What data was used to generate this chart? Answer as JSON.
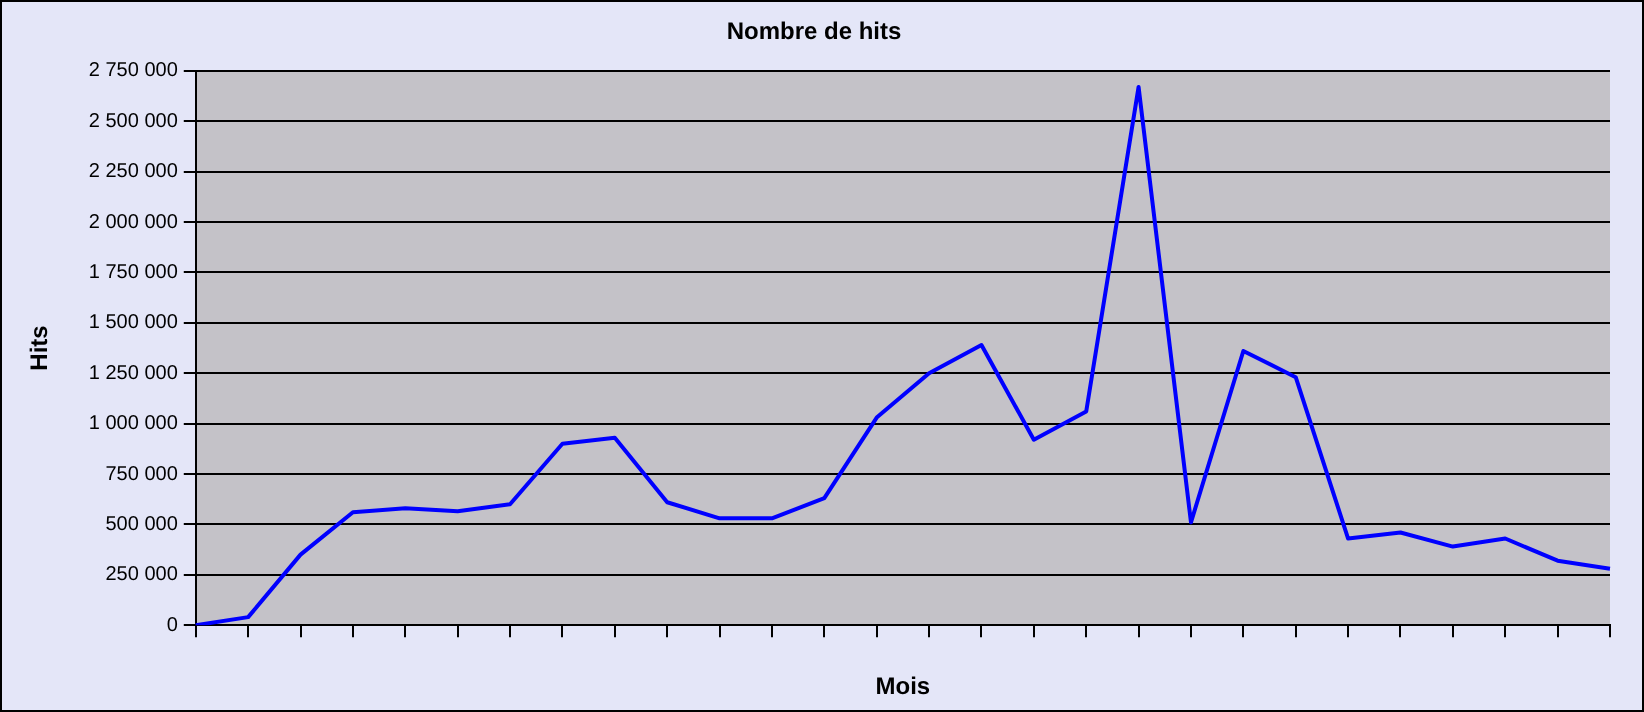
{
  "chart_data": {
    "type": "line",
    "title": "Nombre de hits",
    "xlabel": "Mois",
    "ylabel": "Hits",
    "categories": [
      null,
      null,
      null,
      null,
      null,
      null,
      null,
      null,
      null,
      null,
      null,
      null,
      null,
      null,
      null,
      null,
      null,
      null,
      null,
      null,
      null,
      null,
      null,
      null,
      null,
      null,
      null,
      null
    ],
    "series": [
      {
        "color": "#0000ff",
        "values": [
          0,
          40000,
          350000,
          560000,
          580000,
          565000,
          600000,
          900000,
          930000,
          610000,
          530000,
          530000,
          630000,
          1030000,
          1250000,
          1390000,
          920000,
          1060000,
          2670000,
          510000,
          1360000,
          1230000,
          430000,
          460000,
          390000,
          430000,
          320000,
          280000
        ]
      }
    ],
    "ylim": [
      0,
      2750000
    ],
    "yticks": [
      {
        "value": 0,
        "label": "0"
      },
      {
        "value": 250000,
        "label": "250 000"
      },
      {
        "value": 500000,
        "label": "500 000"
      },
      {
        "value": 750000,
        "label": "750 000"
      },
      {
        "value": 1000000,
        "label": "1 000 000"
      },
      {
        "value": 1250000,
        "label": "1 250 000"
      },
      {
        "value": 1500000,
        "label": "1 500 000"
      },
      {
        "value": 1750000,
        "label": "1 750 000"
      },
      {
        "value": 2000000,
        "label": "2 000 000"
      },
      {
        "value": 2250000,
        "label": "2 250 000"
      },
      {
        "value": 2500000,
        "label": "2 500 000"
      },
      {
        "value": 2750000,
        "label": "2 750 000"
      }
    ],
    "grid": "y",
    "legend": false,
    "marker": "none",
    "line_style": "solid"
  }
}
